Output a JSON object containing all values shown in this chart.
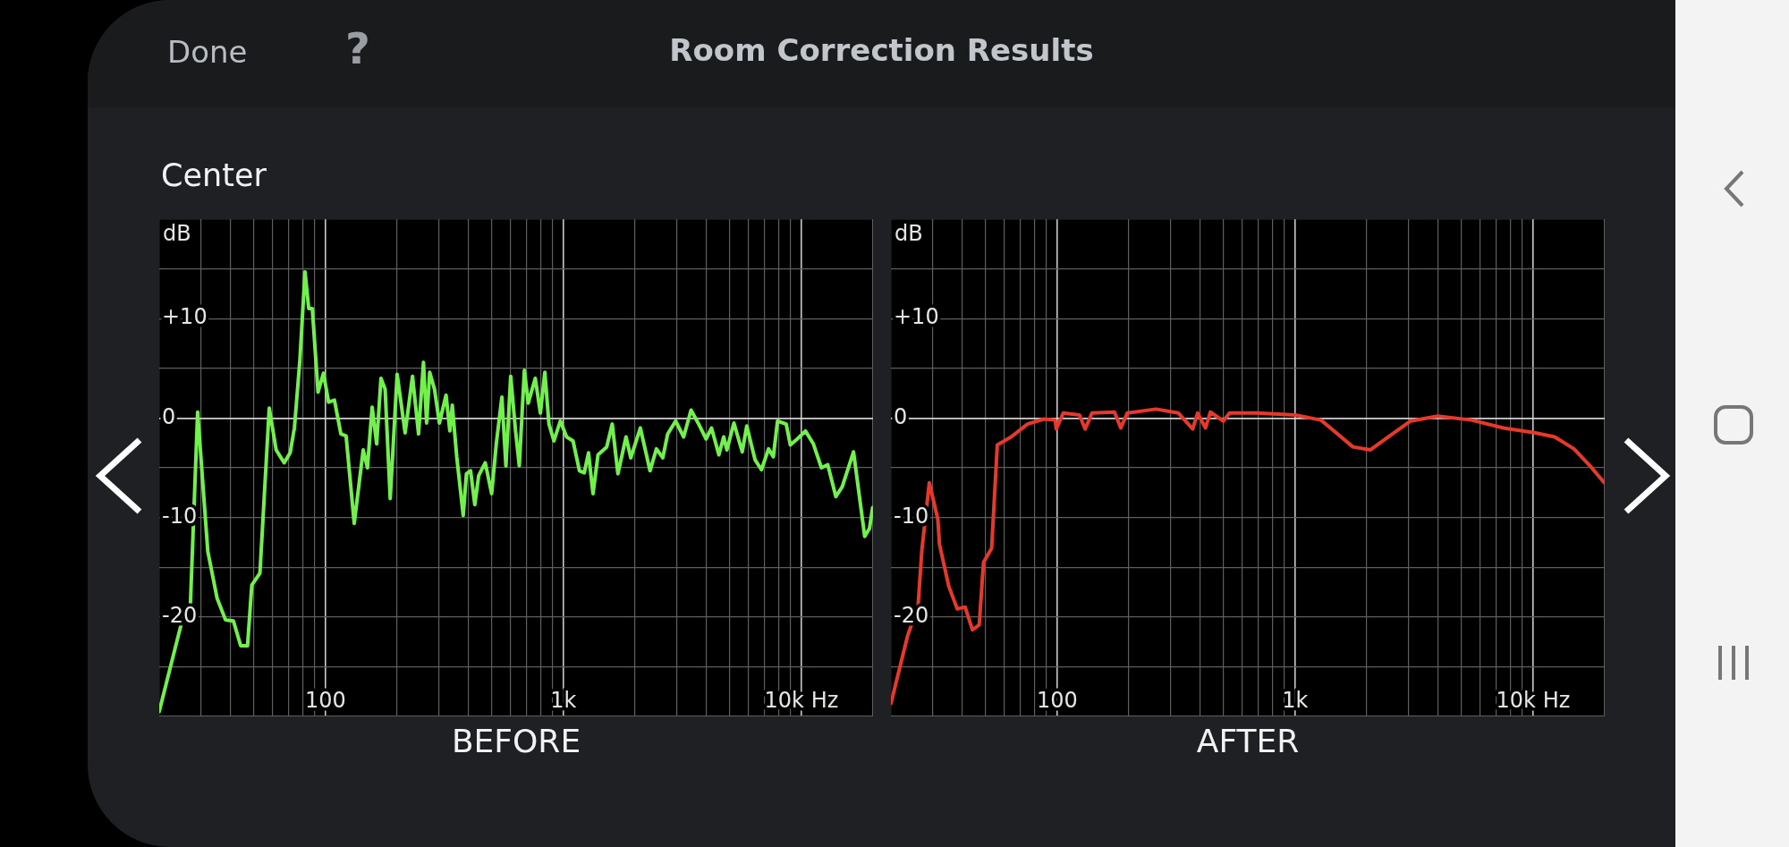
{
  "chart_data": [
    {
      "type": "line",
      "title": "Room Correction Results",
      "subtitle": "Center",
      "annotations": [
        "Done",
        "?"
      ],
      "xlabel": "BEFORE",
      "ylabel": "dB",
      "log": "x",
      "grid": true,
      "marker": "none",
      "line_style": "solid",
      "xlim": [
        20,
        20000
      ],
      "ylim": [
        -30,
        20
      ],
      "xticks": [
        {
          "value": 20,
          "label": null
        },
        {
          "value": 30,
          "label": null
        },
        {
          "value": 40,
          "label": null
        },
        {
          "value": 50,
          "label": null
        },
        {
          "value": 60,
          "label": null
        },
        {
          "value": 70,
          "label": null
        },
        {
          "value": 80,
          "label": null
        },
        {
          "value": 90,
          "label": null
        },
        {
          "value": 100,
          "label": "100"
        },
        {
          "value": 200,
          "label": null
        },
        {
          "value": 300,
          "label": null
        },
        {
          "value": 400,
          "label": null
        },
        {
          "value": 500,
          "label": null
        },
        {
          "value": 600,
          "label": null
        },
        {
          "value": 700,
          "label": null
        },
        {
          "value": 800,
          "label": null
        },
        {
          "value": 900,
          "label": null
        },
        {
          "value": 1000,
          "label": "1k"
        },
        {
          "value": 2000,
          "label": null
        },
        {
          "value": 3000,
          "label": null
        },
        {
          "value": 4000,
          "label": null
        },
        {
          "value": 5000,
          "label": null
        },
        {
          "value": 6000,
          "label": null
        },
        {
          "value": 7000,
          "label": null
        },
        {
          "value": 8000,
          "label": null
        },
        {
          "value": 9000,
          "label": null
        },
        {
          "value": 10000,
          "label": "10k Hz"
        },
        {
          "value": 20000,
          "label": null
        }
      ],
      "yticks": [
        {
          "value": -30,
          "label": null
        },
        {
          "value": -25,
          "label": null
        },
        {
          "value": -20,
          "label": "-20"
        },
        {
          "value": -15,
          "label": null
        },
        {
          "value": -10,
          "label": "-10"
        },
        {
          "value": -5,
          "label": null
        },
        {
          "value": 0,
          "label": "0"
        },
        {
          "value": 5,
          "label": null
        },
        {
          "value": 10,
          "label": "+10"
        },
        {
          "value": 15,
          "label": null
        },
        {
          "value": 20,
          "label": null
        }
      ],
      "series": [
        {
          "color": "#72f04c",
          "x": [
            20,
            25,
            27,
            29,
            32,
            35,
            38,
            41,
            44,
            47,
            49,
            53,
            58,
            62,
            67,
            71,
            74,
            78,
            82,
            85,
            88,
            93,
            98,
            103,
            109,
            116,
            122,
            132,
            144,
            150,
            157,
            164,
            171,
            178,
            187,
            200,
            216,
            232,
            246,
            258,
            266,
            274,
            287,
            301,
            321,
            333,
            341,
            356,
            379,
            391,
            407,
            424,
            440,
            469,
            499,
            522,
            551,
            573,
            600,
            629,
            652,
            685,
            711,
            761,
            800,
            835,
            869,
            912,
            970,
            1031,
            1097,
            1167,
            1223,
            1274,
            1331,
            1397,
            1520,
            1603,
            1694,
            1832,
            1918,
            2104,
            2311,
            2459,
            2614,
            2742,
            2960,
            3200,
            3437,
            3680,
            3975,
            4190,
            4500,
            4714,
            4862,
            5204,
            5640,
            5893,
            6387,
            6796,
            7275,
            7620,
            7937,
            8630,
            8980,
            9614,
            10398,
            11228,
            12137,
            12906,
            13957,
            14850,
            16560,
            18450,
            19330,
            19920
          ],
          "values": [
            -29.5,
            -20.3,
            -19.2,
            0.6,
            -13.4,
            -18.1,
            -20.3,
            -20.4,
            -22.9,
            -22.9,
            -16.8,
            -15.6,
            1.0,
            -3.2,
            -4.5,
            -3.5,
            -1.0,
            5.8,
            14.7,
            11.0,
            11.0,
            2.6,
            4.5,
            1.6,
            1.8,
            -1.6,
            -1.8,
            -10.6,
            -3.2,
            -5.0,
            1.1,
            -2.6,
            4.0,
            2.9,
            -8.1,
            4.4,
            -1.5,
            4.2,
            -1.6,
            5.6,
            -0.5,
            4.6,
            2.9,
            -0.5,
            2.3,
            -1.3,
            1.3,
            -3.9,
            -9.8,
            -5.6,
            -5.3,
            -8.7,
            -5.8,
            -4.5,
            -7.6,
            -2.6,
            2.1,
            -4.8,
            4.2,
            -1.3,
            -4.8,
            4.8,
            1.5,
            4.0,
            0.5,
            4.6,
            -0.6,
            -2.3,
            -0.3,
            -1.9,
            -2.3,
            -5.3,
            -5.5,
            -3.5,
            -7.6,
            -3.7,
            -2.9,
            -0.6,
            -5.6,
            -1.9,
            -4.0,
            -1.0,
            -5.3,
            -3.1,
            -4.0,
            -1.6,
            -0.3,
            -1.9,
            0.8,
            -0.5,
            -2.1,
            -1.0,
            -3.7,
            -1.9,
            -3.2,
            -0.5,
            -3.4,
            -0.8,
            -4.2,
            -5.2,
            -3.1,
            -3.9,
            -0.3,
            -0.6,
            -2.7,
            -2.1,
            -1.3,
            -2.6,
            -5.0,
            -4.7,
            -7.9,
            -6.9,
            -3.4,
            -11.9,
            -11.1,
            -9.0
          ]
        }
      ]
    },
    {
      "type": "line",
      "xlabel": "AFTER",
      "ylabel": "dB",
      "log": "x",
      "grid": true,
      "marker": "none",
      "line_style": "solid",
      "xlim": [
        20,
        20000
      ],
      "ylim": [
        -30,
        20
      ],
      "xticks": [
        {
          "value": 20,
          "label": null
        },
        {
          "value": 30,
          "label": null
        },
        {
          "value": 40,
          "label": null
        },
        {
          "value": 50,
          "label": null
        },
        {
          "value": 60,
          "label": null
        },
        {
          "value": 70,
          "label": null
        },
        {
          "value": 80,
          "label": null
        },
        {
          "value": 90,
          "label": null
        },
        {
          "value": 100,
          "label": "100"
        },
        {
          "value": 200,
          "label": null
        },
        {
          "value": 300,
          "label": null
        },
        {
          "value": 400,
          "label": null
        },
        {
          "value": 500,
          "label": null
        },
        {
          "value": 600,
          "label": null
        },
        {
          "value": 700,
          "label": null
        },
        {
          "value": 800,
          "label": null
        },
        {
          "value": 900,
          "label": null
        },
        {
          "value": 1000,
          "label": "1k"
        },
        {
          "value": 2000,
          "label": null
        },
        {
          "value": 3000,
          "label": null
        },
        {
          "value": 4000,
          "label": null
        },
        {
          "value": 5000,
          "label": null
        },
        {
          "value": 6000,
          "label": null
        },
        {
          "value": 7000,
          "label": null
        },
        {
          "value": 8000,
          "label": null
        },
        {
          "value": 9000,
          "label": null
        },
        {
          "value": 10000,
          "label": "10k Hz"
        },
        {
          "value": 20000,
          "label": null
        }
      ],
      "yticks": [
        {
          "value": -30,
          "label": null
        },
        {
          "value": -25,
          "label": null
        },
        {
          "value": -20,
          "label": "-20"
        },
        {
          "value": -15,
          "label": null
        },
        {
          "value": -10,
          "label": "-10"
        },
        {
          "value": -5,
          "label": null
        },
        {
          "value": 0,
          "label": "0"
        },
        {
          "value": 5,
          "label": null
        },
        {
          "value": 10,
          "label": "+10"
        },
        {
          "value": 15,
          "label": null
        },
        {
          "value": 20,
          "label": null
        }
      ],
      "series": [
        {
          "color": "#e6392b",
          "x": [
            20,
            23.5,
            26,
            27,
            29,
            31.5,
            32,
            35,
            38,
            41,
            44,
            47,
            49,
            53,
            56,
            64,
            75,
            88,
            98,
            99,
            106,
            124,
            131,
            140,
            174,
            185,
            197,
            260,
            323,
            371,
            389,
            420,
            440,
            499,
            530,
            629,
            689,
            1000,
            1282,
            1407,
            1748,
            2073,
            2459,
            3057,
            3975,
            5505,
            7500,
            10230,
            12330,
            14850,
            17340,
            19920
          ],
          "values": [
            -28.7,
            -21.9,
            -18.9,
            -13.2,
            -6.5,
            -10.2,
            -12.7,
            -16.9,
            -19.2,
            -19.0,
            -21.3,
            -20.8,
            -14.5,
            -13.1,
            -2.7,
            -1.9,
            -0.6,
            -0.1,
            -0.2,
            -1.1,
            0.5,
            0.3,
            -1.1,
            0.5,
            0.6,
            -1.0,
            0.5,
            0.9,
            0.5,
            -1.1,
            0.5,
            -1.0,
            0.6,
            -0.3,
            0.5,
            0.5,
            0.5,
            0.3,
            -0.2,
            -1.0,
            -2.9,
            -3.2,
            -1.9,
            -0.3,
            0.2,
            -0.2,
            -1.0,
            -1.5,
            -1.9,
            -3.1,
            -4.8,
            -6.5
          ]
        }
      ]
    }
  ]
}
